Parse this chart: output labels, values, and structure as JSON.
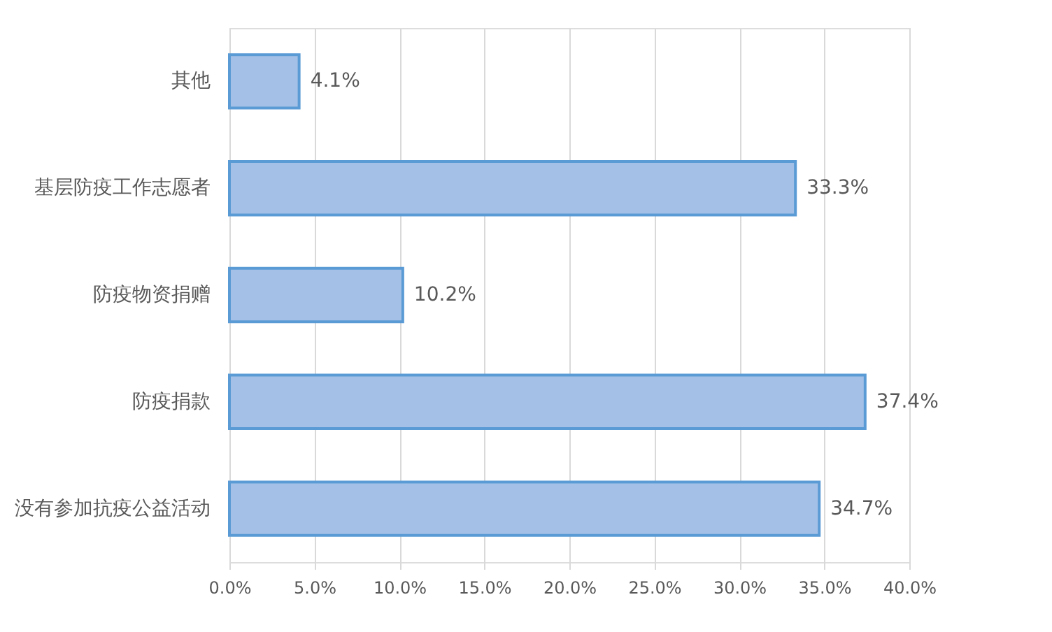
{
  "chart_data": {
    "type": "bar",
    "orientation": "horizontal",
    "categories": [
      "其他",
      "基层防疫工作志愿者",
      "防疫物资捐赠",
      "防疫捐款",
      "没有参加抗疫公益活动"
    ],
    "values": [
      4.1,
      33.3,
      10.2,
      37.4,
      34.7
    ],
    "value_labels": [
      "4.1%",
      "33.3%",
      "10.2%",
      "37.4%",
      "34.7%"
    ],
    "color": "#a4c0e6",
    "xlim": [
      0,
      40
    ],
    "xticks": [
      {
        "value": 0,
        "label": "0.0%"
      },
      {
        "value": 5,
        "label": "5.0%"
      },
      {
        "value": 10,
        "label": "10.0%"
      },
      {
        "value": 15,
        "label": "15.0%"
      },
      {
        "value": 20,
        "label": "20.0%"
      },
      {
        "value": 25,
        "label": "25.0%"
      },
      {
        "value": 30,
        "label": "30.0%"
      },
      {
        "value": 35,
        "label": "35.0%"
      },
      {
        "value": 40,
        "label": "40.0%"
      }
    ],
    "grid": "x"
  }
}
